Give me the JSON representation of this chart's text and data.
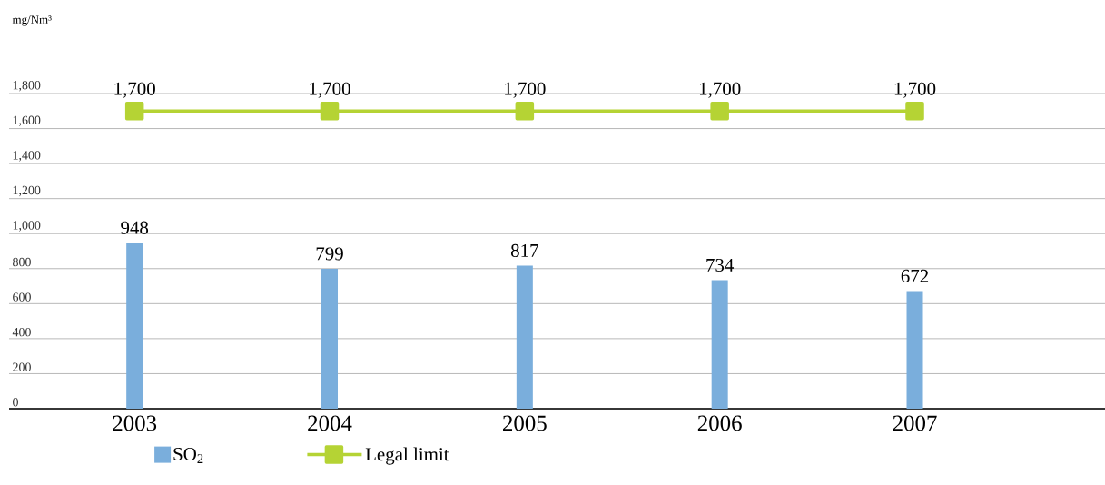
{
  "chart_data": {
    "type": "bar",
    "ylabel": "mg/Nm³",
    "categories": [
      "2003",
      "2004",
      "2005",
      "2006",
      "2007"
    ],
    "series": [
      {
        "name": "SO$_{2}$",
        "type": "bar",
        "color": "#7aaedc",
        "values": [
          948,
          799,
          817,
          734,
          672
        ],
        "value_labels": [
          "948",
          "799",
          "817",
          "734",
          "672"
        ]
      },
      {
        "name": "Legal limit",
        "type": "line",
        "color": "#b5d334",
        "marker": "square",
        "values": [
          1700,
          1700,
          1700,
          1700,
          1700
        ],
        "value_labels": [
          "1,700",
          "1,700",
          "1,700",
          "1,700",
          "1,700"
        ]
      }
    ],
    "ylim": [
      0,
      1800
    ],
    "yticks": [
      {
        "value": 0,
        "label": "0"
      },
      {
        "value": 200,
        "label": "200"
      },
      {
        "value": 400,
        "label": "400"
      },
      {
        "value": 600,
        "label": "600"
      },
      {
        "value": 800,
        "label": "800"
      },
      {
        "value": 1000,
        "label": "1,000"
      },
      {
        "value": 1200,
        "label": "1,200"
      },
      {
        "value": 1400,
        "label": "1,400"
      },
      {
        "value": 1600,
        "label": "1,600"
      },
      {
        "value": 1800,
        "label": "1,800"
      }
    ],
    "grid": "y",
    "legend": "bottom"
  }
}
